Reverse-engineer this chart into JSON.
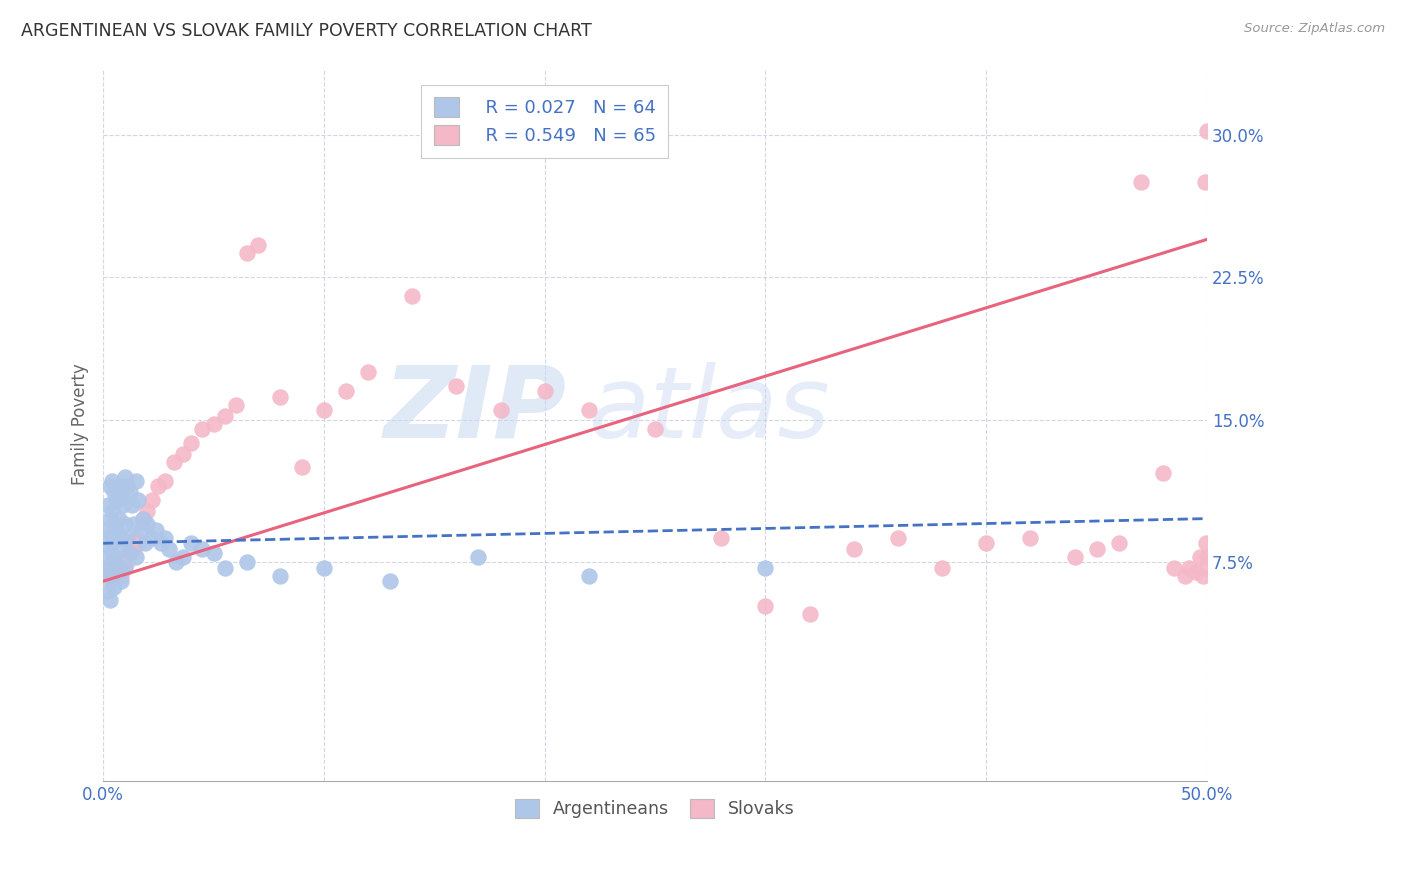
{
  "title": "ARGENTINEAN VS SLOVAK FAMILY POVERTY CORRELATION CHART",
  "source": "Source: ZipAtlas.com",
  "ylabel": "Family Poverty",
  "xlim": [
    0.0,
    0.5
  ],
  "ylim": [
    -0.04,
    0.335
  ],
  "yticks": [
    0.075,
    0.15,
    0.225,
    0.3
  ],
  "ytick_labels": [
    "7.5%",
    "15.0%",
    "22.5%",
    "30.0%"
  ],
  "xticks": [
    0.0,
    0.1,
    0.2,
    0.3,
    0.4,
    0.5
  ],
  "xtick_labels": [
    "0.0%",
    "",
    "",
    "",
    "",
    "50.0%"
  ],
  "argentinean_color": "#aec6e8",
  "argentinean_line_color": "#4472c4",
  "slovak_color": "#f4b8c8",
  "slovak_line_color": "#e8637d",
  "argentinean_R": 0.027,
  "argentinean_N": 64,
  "slovak_R": 0.549,
  "slovak_N": 65,
  "arg_x": [
    0.001,
    0.001,
    0.002,
    0.002,
    0.002,
    0.002,
    0.003,
    0.003,
    0.003,
    0.003,
    0.003,
    0.004,
    0.004,
    0.004,
    0.004,
    0.005,
    0.005,
    0.005,
    0.005,
    0.006,
    0.006,
    0.006,
    0.007,
    0.007,
    0.007,
    0.008,
    0.008,
    0.008,
    0.009,
    0.009,
    0.01,
    0.01,
    0.01,
    0.011,
    0.011,
    0.012,
    0.012,
    0.013,
    0.014,
    0.015,
    0.015,
    0.016,
    0.017,
    0.018,
    0.019,
    0.02,
    0.022,
    0.024,
    0.026,
    0.028,
    0.03,
    0.033,
    0.036,
    0.04,
    0.045,
    0.05,
    0.055,
    0.065,
    0.08,
    0.1,
    0.13,
    0.17,
    0.22,
    0.3
  ],
  "arg_y": [
    0.092,
    0.078,
    0.105,
    0.088,
    0.072,
    0.06,
    0.115,
    0.098,
    0.082,
    0.068,
    0.055,
    0.118,
    0.102,
    0.085,
    0.068,
    0.112,
    0.095,
    0.078,
    0.062,
    0.108,
    0.092,
    0.075,
    0.115,
    0.098,
    0.072,
    0.11,
    0.088,
    0.065,
    0.105,
    0.082,
    0.12,
    0.095,
    0.072,
    0.115,
    0.088,
    0.112,
    0.08,
    0.105,
    0.095,
    0.118,
    0.078,
    0.108,
    0.092,
    0.098,
    0.085,
    0.095,
    0.088,
    0.092,
    0.085,
    0.088,
    0.082,
    0.075,
    0.078,
    0.085,
    0.082,
    0.08,
    0.072,
    0.075,
    0.068,
    0.072,
    0.065,
    0.078,
    0.068,
    0.072
  ],
  "slv_x": [
    0.001,
    0.002,
    0.003,
    0.004,
    0.005,
    0.006,
    0.007,
    0.008,
    0.009,
    0.01,
    0.011,
    0.012,
    0.013,
    0.014,
    0.015,
    0.016,
    0.018,
    0.02,
    0.022,
    0.025,
    0.028,
    0.032,
    0.036,
    0.04,
    0.045,
    0.05,
    0.055,
    0.06,
    0.065,
    0.07,
    0.08,
    0.09,
    0.1,
    0.11,
    0.12,
    0.14,
    0.16,
    0.18,
    0.2,
    0.22,
    0.25,
    0.28,
    0.3,
    0.32,
    0.34,
    0.36,
    0.38,
    0.4,
    0.42,
    0.44,
    0.45,
    0.46,
    0.47,
    0.48,
    0.485,
    0.49,
    0.492,
    0.495,
    0.497,
    0.498,
    0.499,
    0.4995,
    0.4998,
    0.4999,
    0.5
  ],
  "slv_y": [
    0.068,
    0.072,
    0.068,
    0.075,
    0.07,
    0.072,
    0.075,
    0.068,
    0.072,
    0.078,
    0.075,
    0.082,
    0.085,
    0.082,
    0.088,
    0.085,
    0.098,
    0.102,
    0.108,
    0.115,
    0.118,
    0.128,
    0.132,
    0.138,
    0.145,
    0.148,
    0.152,
    0.158,
    0.238,
    0.242,
    0.162,
    0.125,
    0.155,
    0.165,
    0.175,
    0.215,
    0.168,
    0.155,
    0.165,
    0.155,
    0.145,
    0.088,
    0.052,
    0.048,
    0.082,
    0.088,
    0.072,
    0.085,
    0.088,
    0.078,
    0.082,
    0.085,
    0.275,
    0.122,
    0.072,
    0.068,
    0.072,
    0.07,
    0.078,
    0.068,
    0.275,
    0.085,
    0.072,
    0.078,
    0.302
  ],
  "arg_trendline_x": [
    0.0,
    0.5
  ],
  "arg_trendline_y": [
    0.085,
    0.098
  ],
  "slv_trendline_x": [
    0.0,
    0.5
  ],
  "slv_trendline_y": [
    0.065,
    0.245
  ]
}
